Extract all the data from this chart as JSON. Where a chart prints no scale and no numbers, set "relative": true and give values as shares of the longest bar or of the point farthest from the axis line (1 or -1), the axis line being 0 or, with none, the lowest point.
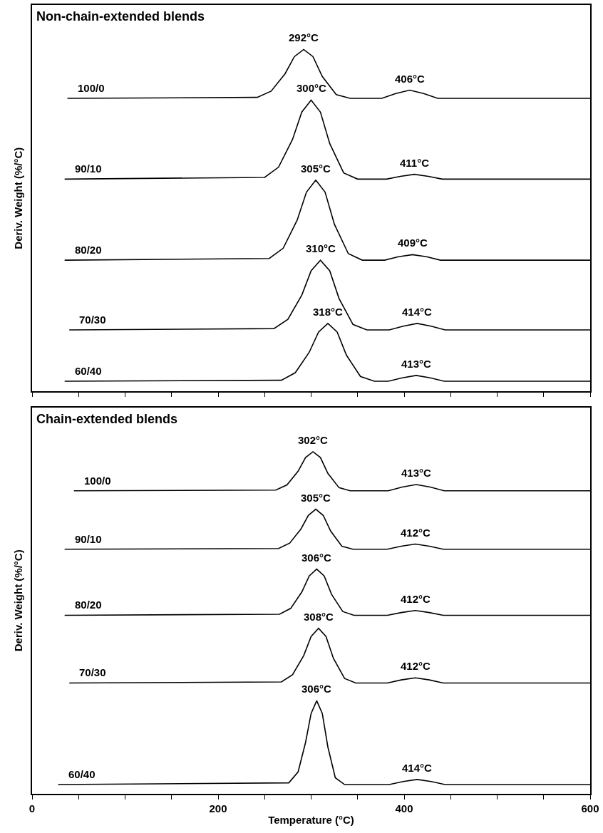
{
  "chart_data": [
    {
      "type": "line",
      "title": "Non-chain-extended blends",
      "ylabel": "Deriv. Weight (%/°C)",
      "relative": true,
      "legend": false,
      "tick_labels": false,
      "xlim": [
        0,
        600
      ],
      "xticks": [
        0,
        {
          "value": 50,
          "label": null
        },
        {
          "value": 100,
          "label": null
        },
        {
          "value": 150,
          "label": null
        },
        200,
        {
          "value": 250,
          "label": null
        },
        {
          "value": 300,
          "label": null
        },
        {
          "value": 350,
          "label": null
        },
        400,
        {
          "value": 450,
          "label": null
        },
        {
          "value": 500,
          "label": null
        },
        {
          "value": 550,
          "label": null
        },
        600
      ],
      "series": [
        {
          "name": "100/0",
          "color": "#000000",
          "x": [
            38,
            242,
            257,
            272,
            282,
            292,
            302,
            312,
            327,
            342,
            376,
            391,
            406,
            421,
            436,
            600
          ],
          "values": [
            0.857,
            0.86,
            0.878,
            0.929,
            0.979,
            1.0,
            0.979,
            0.921,
            0.868,
            0.857,
            0.857,
            0.871,
            0.881,
            0.871,
            0.857,
            0.857
          ]
        },
        {
          "name": "90/10",
          "color": "#000000",
          "x": [
            35,
            250,
            265,
            280,
            290,
            300,
            310,
            320,
            335,
            350,
            381,
            396,
            411,
            426,
            441,
            600
          ],
          "values": [
            0.621,
            0.626,
            0.656,
            0.737,
            0.817,
            0.852,
            0.817,
            0.725,
            0.639,
            0.621,
            0.621,
            0.629,
            0.635,
            0.629,
            0.621,
            0.621
          ]
        },
        {
          "name": "80/20",
          "color": "#000000",
          "x": [
            35,
            255,
            270,
            285,
            295,
            305,
            315,
            325,
            340,
            355,
            379,
            394,
            409,
            424,
            439,
            600
          ],
          "values": [
            0.384,
            0.389,
            0.419,
            0.501,
            0.583,
            0.618,
            0.583,
            0.489,
            0.403,
            0.384,
            0.384,
            0.394,
            0.4,
            0.394,
            0.384,
            0.384
          ]
        },
        {
          "name": "70/30",
          "color": "#000000",
          "x": [
            40,
            260,
            275,
            290,
            300,
            310,
            320,
            330,
            345,
            360,
            384,
            399,
            414,
            429,
            444,
            600
          ],
          "values": [
            0.18,
            0.184,
            0.211,
            0.282,
            0.353,
            0.384,
            0.353,
            0.272,
            0.196,
            0.18,
            0.18,
            0.191,
            0.199,
            0.191,
            0.18,
            0.18
          ]
        },
        {
          "name": "60/40",
          "color": "#000000",
          "x": [
            35,
            268,
            283,
            298,
            308,
            318,
            328,
            338,
            353,
            368,
            383,
            398,
            413,
            428,
            443,
            600
          ],
          "values": [
            0.03,
            0.033,
            0.055,
            0.115,
            0.174,
            0.199,
            0.174,
            0.106,
            0.044,
            0.03,
            0.03,
            0.04,
            0.047,
            0.04,
            0.03,
            0.03
          ]
        }
      ],
      "annotations": [
        {
          "text": "292°C",
          "x": 292,
          "y": 1.0
        },
        {
          "text": "406°C",
          "x": 406,
          "y": 0.881
        },
        {
          "text": "300°C",
          "x": 300,
          "y": 0.852
        },
        {
          "text": "411°C",
          "x": 411,
          "y": 0.635
        },
        {
          "text": "305°C",
          "x": 305,
          "y": 0.618
        },
        {
          "text": "409°C",
          "x": 409,
          "y": 0.4
        },
        {
          "text": "310°C",
          "x": 310,
          "y": 0.384
        },
        {
          "text": "414°C",
          "x": 414,
          "y": 0.199
        },
        {
          "text": "318°C",
          "x": 318,
          "y": 0.199
        },
        {
          "text": "413°C",
          "x": 413,
          "y": 0.047
        }
      ]
    },
    {
      "type": "line",
      "title": "Chain-extended blends",
      "xlabel": "Temperature (°C)",
      "ylabel": "Deriv. Weight (%/°C)",
      "relative": true,
      "legend": false,
      "tick_labels": "x",
      "xlim": [
        0,
        600
      ],
      "xticks": [
        0,
        {
          "value": 50,
          "label": null
        },
        {
          "value": 100,
          "label": null
        },
        {
          "value": 150,
          "label": null
        },
        200,
        {
          "value": 250,
          "label": null
        },
        {
          "value": 300,
          "label": null
        },
        {
          "value": 350,
          "label": null
        },
        400,
        {
          "value": 450,
          "label": null
        },
        {
          "value": 500,
          "label": null
        },
        {
          "value": 550,
          "label": null
        },
        600
      ],
      "series": [
        {
          "name": "100/0",
          "color": "#000000",
          "x": [
            45,
            262,
            274,
            286,
            294,
            302,
            310,
            318,
            330,
            342,
            383,
            398,
            413,
            428,
            443,
            600
          ],
          "values": [
            0.886,
            0.888,
            0.903,
            0.943,
            0.983,
            1.0,
            0.983,
            0.937,
            0.895,
            0.886,
            0.886,
            0.897,
            0.904,
            0.897,
            0.886,
            0.886
          ]
        },
        {
          "name": "90/10",
          "color": "#000000",
          "x": [
            35,
            265,
            277,
            289,
            297,
            305,
            313,
            321,
            333,
            345,
            382,
            397,
            412,
            427,
            442,
            600
          ],
          "values": [
            0.715,
            0.717,
            0.733,
            0.774,
            0.814,
            0.832,
            0.814,
            0.768,
            0.724,
            0.715,
            0.715,
            0.724,
            0.73,
            0.724,
            0.715,
            0.715
          ]
        },
        {
          "name": "80/20",
          "color": "#000000",
          "x": [
            35,
            266,
            278,
            290,
            298,
            306,
            314,
            322,
            334,
            346,
            382,
            397,
            412,
            427,
            442,
            600
          ],
          "values": [
            0.522,
            0.525,
            0.542,
            0.59,
            0.637,
            0.657,
            0.637,
            0.583,
            0.533,
            0.522,
            0.522,
            0.53,
            0.536,
            0.53,
            0.522,
            0.522
          ]
        },
        {
          "name": "70/30",
          "color": "#000000",
          "x": [
            40,
            268,
            280,
            292,
            300,
            308,
            316,
            324,
            336,
            348,
            382,
            397,
            412,
            427,
            442,
            600
          ],
          "values": [
            0.324,
            0.327,
            0.348,
            0.404,
            0.46,
            0.484,
            0.46,
            0.396,
            0.337,
            0.324,
            0.324,
            0.333,
            0.339,
            0.333,
            0.324,
            0.324
          ]
        },
        {
          "name": "60/40",
          "color": "#000000",
          "x": [
            28,
            276,
            286,
            294,
            300,
            306,
            312,
            318,
            326,
            336,
            384,
            399,
            414,
            429,
            444,
            600
          ],
          "values": [
            0.027,
            0.032,
            0.064,
            0.15,
            0.235,
            0.272,
            0.235,
            0.137,
            0.047,
            0.027,
            0.027,
            0.036,
            0.042,
            0.036,
            0.027,
            0.027
          ]
        }
      ],
      "annotations": [
        {
          "text": "302°C",
          "x": 302,
          "y": 1.0
        },
        {
          "text": "413°C",
          "x": 413,
          "y": 0.904
        },
        {
          "text": "305°C",
          "x": 305,
          "y": 0.832
        },
        {
          "text": "412°C",
          "x": 412,
          "y": 0.73
        },
        {
          "text": "306°C",
          "x": 306,
          "y": 0.657
        },
        {
          "text": "412°C",
          "x": 412,
          "y": 0.536
        },
        {
          "text": "308°C",
          "x": 308,
          "y": 0.484
        },
        {
          "text": "412°C",
          "x": 412,
          "y": 0.339
        },
        {
          "text": "306°C",
          "x": 306,
          "y": 0.272
        },
        {
          "text": "414°C",
          "x": 414,
          "y": 0.042
        }
      ]
    }
  ]
}
